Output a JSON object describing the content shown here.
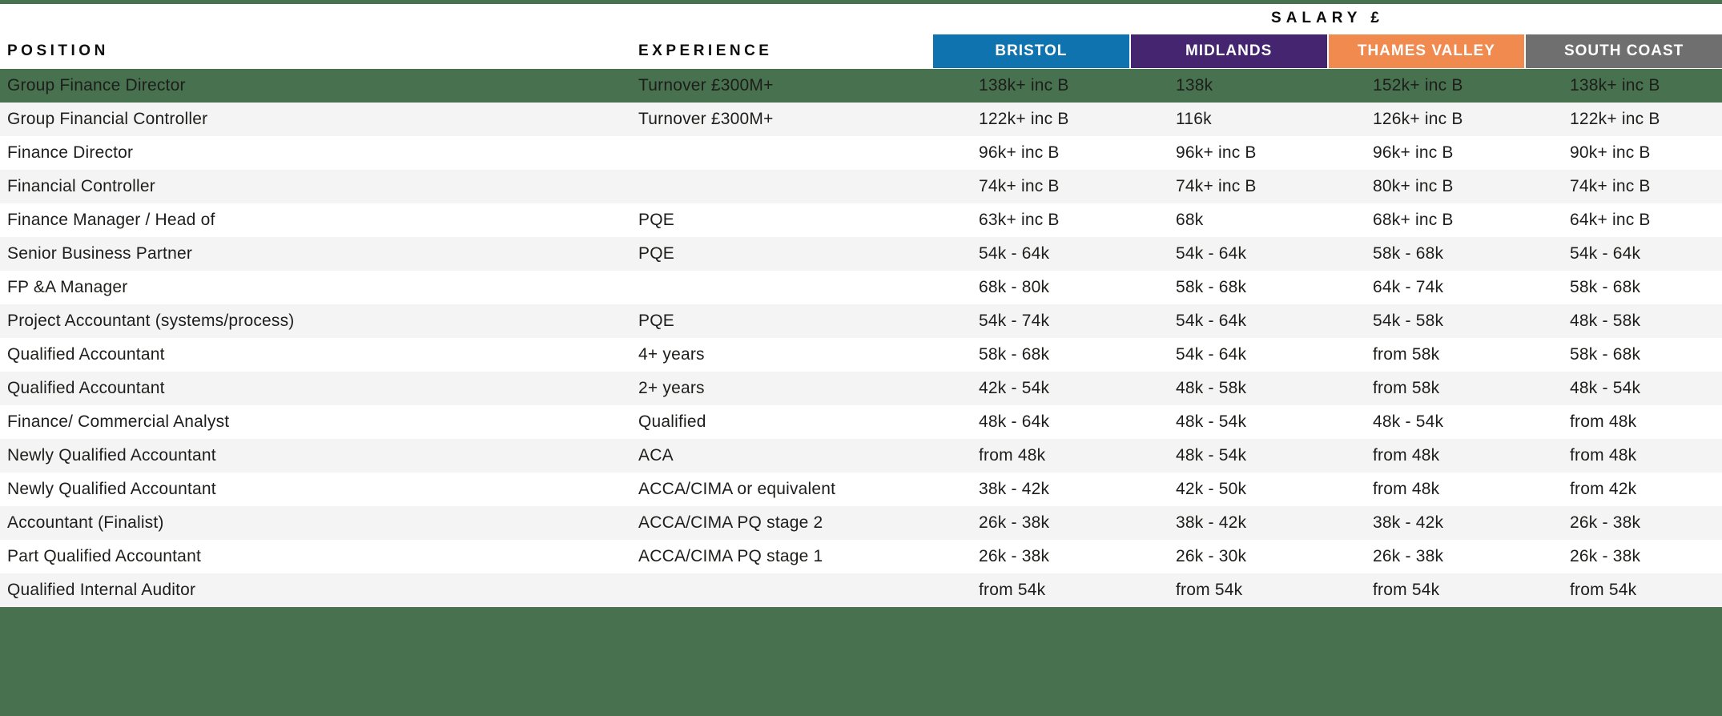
{
  "brand": {
    "green": "#48714f",
    "row_alt_gray": "#f4f4f4",
    "text": "#1d1d1b"
  },
  "table": {
    "salary_group_header": "SALARY £",
    "position_header": "POSITION",
    "experience_header": "EXPERIENCE",
    "region_columns": [
      {
        "label": "BRISTOL",
        "color": "#0f73af"
      },
      {
        "label": "MIDLANDS",
        "color": "#462570"
      },
      {
        "label": "THAMES VALLEY",
        "color": "#f08a4f"
      },
      {
        "label": "SOUTH COAST",
        "color": "#706f6f"
      }
    ],
    "rows": [
      {
        "position": "Group Finance Director",
        "experience": "Turnover £300M+",
        "bristol": "138k+ inc B",
        "midlands": "138k",
        "thames_valley": "152k+ inc B",
        "south_coast": "138k+ inc B",
        "highlight": true
      },
      {
        "position": "Group Financial Controller",
        "experience": "Turnover £300M+",
        "bristol": "122k+ inc B",
        "midlands": "116k",
        "thames_valley": "126k+ inc B",
        "south_coast": "122k+ inc B",
        "highlight": false
      },
      {
        "position": "Finance Director",
        "experience": "",
        "bristol": "96k+ inc B",
        "midlands": "96k+ inc B",
        "thames_valley": "96k+ inc B",
        "south_coast": "90k+ inc B",
        "highlight": false
      },
      {
        "position": "Financial Controller",
        "experience": "",
        "bristol": "74k+ inc B",
        "midlands": "74k+ inc B",
        "thames_valley": "80k+ inc B",
        "south_coast": "74k+ inc B",
        "highlight": false
      },
      {
        "position": "Finance Manager / Head of",
        "experience": "PQE",
        "bristol": "63k+ inc B",
        "midlands": "68k",
        "thames_valley": "68k+ inc B",
        "south_coast": "64k+ inc B",
        "highlight": false
      },
      {
        "position": "Senior Business Partner",
        "experience": "PQE",
        "bristol": "54k - 64k",
        "midlands": "54k - 64k",
        "thames_valley": "58k - 68k",
        "south_coast": "54k - 64k",
        "highlight": false
      },
      {
        "position": "FP &A Manager",
        "experience": "",
        "bristol": "68k - 80k",
        "midlands": "58k - 68k",
        "thames_valley": "64k - 74k",
        "south_coast": "58k - 68k",
        "highlight": false
      },
      {
        "position": "Project Accountant (systems/process)",
        "experience": "PQE",
        "bristol": "54k - 74k",
        "midlands": "54k - 64k",
        "thames_valley": "54k - 58k",
        "south_coast": "48k - 58k",
        "highlight": false
      },
      {
        "position": "Qualified Accountant",
        "experience": "4+ years",
        "bristol": "58k - 68k",
        "midlands": "54k - 64k",
        "thames_valley": "from 58k",
        "south_coast": "58k - 68k",
        "highlight": false
      },
      {
        "position": "Qualified Accountant",
        "experience": "2+ years",
        "bristol": "42k - 54k",
        "midlands": "48k - 58k",
        "thames_valley": "from 58k",
        "south_coast": "48k - 54k",
        "highlight": false
      },
      {
        "position": "Finance/ Commercial Analyst",
        "experience": "Qualified",
        "bristol": "48k - 64k",
        "midlands": "48k - 54k",
        "thames_valley": "48k - 54k",
        "south_coast": "from 48k",
        "highlight": false
      },
      {
        "position": "Newly Qualified Accountant",
        "experience": "ACA",
        "bristol": "from 48k",
        "midlands": "48k - 54k",
        "thames_valley": "from 48k",
        "south_coast": "from 48k",
        "highlight": false
      },
      {
        "position": "Newly Qualified Accountant",
        "experience": "ACCA/CIMA or equivalent",
        "bristol": "38k - 42k",
        "midlands": "42k - 50k",
        "thames_valley": "from 48k",
        "south_coast": "from 42k",
        "highlight": false
      },
      {
        "position": "Accountant (Finalist)",
        "experience": "ACCA/CIMA PQ stage 2",
        "bristol": "26k - 38k",
        "midlands": "38k - 42k",
        "thames_valley": "38k - 42k",
        "south_coast": "26k - 38k",
        "highlight": false
      },
      {
        "position": "Part Qualified Accountant",
        "experience": "ACCA/CIMA PQ stage 1",
        "bristol": "26k - 38k",
        "midlands": "26k - 30k",
        "thames_valley": "26k - 38k",
        "south_coast": "26k - 38k",
        "highlight": false
      },
      {
        "position": "Qualified Internal Auditor",
        "experience": "",
        "bristol": "from 54k",
        "midlands": "from 54k",
        "thames_valley": "from 54k",
        "south_coast": "from 54k",
        "highlight": false
      }
    ]
  }
}
